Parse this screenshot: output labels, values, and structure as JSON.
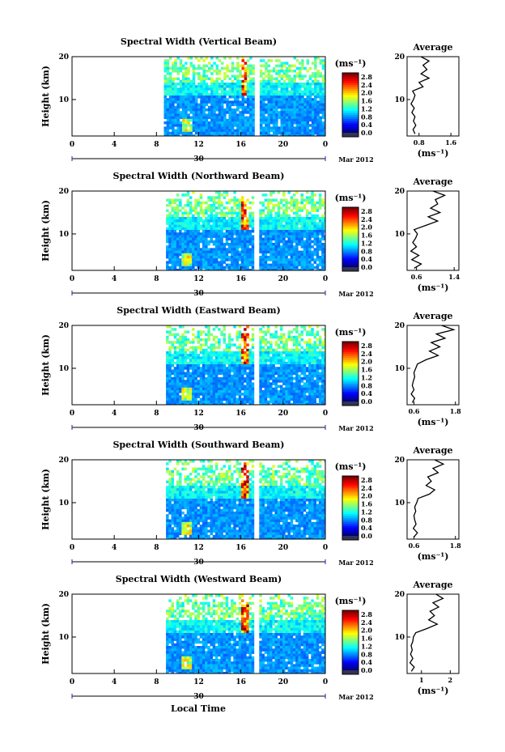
{
  "figure": {
    "xlabel": "Local Time",
    "date_label": "Mar 2012",
    "day_label": "30",
    "colorbar_unit": "(ms⁻¹)",
    "avg_title": "Average",
    "avg_unit": "(ms⁻¹)",
    "height_label": "Height (km)"
  },
  "chart_data": [
    {
      "type": "heatmap",
      "title": "Spectral Width (Vertical Beam)",
      "ylabel": "Height (km)",
      "xlabel": "Local Time",
      "x_ticks": [
        "0",
        "4",
        "8",
        "12",
        "16",
        "20",
        "0"
      ],
      "xlim": [
        0,
        24
      ],
      "y_ticks": [
        "10",
        "20"
      ],
      "ylim": [
        1.5,
        20
      ],
      "colorbar_ticks": [
        "0.0",
        "0.4",
        "0.8",
        "1.2",
        "1.6",
        "2.0",
        "2.4",
        "2.8"
      ],
      "colorbar_range": [
        0,
        3.0
      ],
      "data_start_hour": 8.7,
      "gaps_hours": [
        [
          17.2,
          17.6
        ]
      ],
      "average_profile": {
        "title": "Average",
        "xlabel": "(ms⁻¹)",
        "x_ticks": [
          "0.8",
          "1.6"
        ],
        "xlim": [
          0.5,
          1.8
        ],
        "y_ticks": [
          "10",
          "20"
        ],
        "profile": [
          [
            0.7,
            2
          ],
          [
            0.65,
            3
          ],
          [
            0.72,
            4
          ],
          [
            0.66,
            5
          ],
          [
            0.7,
            6
          ],
          [
            0.62,
            7
          ],
          [
            0.68,
            8
          ],
          [
            0.6,
            9
          ],
          [
            0.66,
            10
          ],
          [
            0.7,
            11
          ],
          [
            0.64,
            12
          ],
          [
            0.9,
            13
          ],
          [
            0.8,
            14
          ],
          [
            1.05,
            15
          ],
          [
            0.85,
            16
          ],
          [
            1.0,
            17
          ],
          [
            0.9,
            18
          ],
          [
            1.05,
            19
          ],
          [
            0.85,
            20
          ]
        ]
      }
    },
    {
      "type": "heatmap",
      "title": "Spectral Width (Northward Beam)",
      "ylabel": "Height (km)",
      "xlabel": "Local Time",
      "x_ticks": [
        "0",
        "4",
        "8",
        "12",
        "16",
        "20",
        "0"
      ],
      "xlim": [
        0,
        24
      ],
      "y_ticks": [
        "10",
        "20"
      ],
      "ylim": [
        1.5,
        20
      ],
      "colorbar_ticks": [
        "0.0",
        "0.4",
        "0.8",
        "1.2",
        "1.6",
        "2.0",
        "2.4",
        "2.8"
      ],
      "colorbar_range": [
        0,
        3.0
      ],
      "data_start_hour": 8.9,
      "gaps_hours": [
        [
          17.2,
          17.6
        ]
      ],
      "average_profile": {
        "title": "Average",
        "xlabel": "(ms⁻¹)",
        "x_ticks": [
          "0.6",
          "1.4"
        ],
        "xlim": [
          0.4,
          1.5
        ],
        "y_ticks": [
          "10",
          "20"
        ],
        "profile": [
          [
            0.55,
            2
          ],
          [
            0.7,
            3
          ],
          [
            0.5,
            4
          ],
          [
            0.65,
            5
          ],
          [
            0.48,
            6
          ],
          [
            0.6,
            7
          ],
          [
            0.52,
            8
          ],
          [
            0.58,
            9
          ],
          [
            0.62,
            10
          ],
          [
            0.55,
            11
          ],
          [
            0.8,
            12
          ],
          [
            1.05,
            13
          ],
          [
            0.85,
            14
          ],
          [
            1.1,
            15
          ],
          [
            0.9,
            16
          ],
          [
            1.05,
            17
          ],
          [
            1.0,
            18
          ],
          [
            1.2,
            19
          ],
          [
            0.95,
            20
          ]
        ]
      }
    },
    {
      "type": "heatmap",
      "title": "Spectral Width (Eastward Beam)",
      "ylabel": "Height (km)",
      "xlabel": "Local Time",
      "x_ticks": [
        "0",
        "4",
        "8",
        "12",
        "16",
        "20",
        "0"
      ],
      "xlim": [
        0,
        24
      ],
      "y_ticks": [
        "10",
        "20"
      ],
      "ylim": [
        1.5,
        20
      ],
      "colorbar_ticks": [
        "0.0",
        "0.4",
        "0.8",
        "1.2",
        "1.6",
        "2.0",
        "2.4",
        "2.8"
      ],
      "colorbar_range": [
        0,
        3.0
      ],
      "data_start_hour": 8.9,
      "gaps_hours": [
        [
          17.2,
          17.6
        ]
      ],
      "average_profile": {
        "title": "Average",
        "xlabel": "(ms⁻¹)",
        "x_ticks": [
          "0.6",
          "1.8"
        ],
        "xlim": [
          0.4,
          1.9
        ],
        "y_ticks": [
          "10",
          "20"
        ],
        "profile": [
          [
            0.55,
            2
          ],
          [
            0.62,
            3
          ],
          [
            0.52,
            4
          ],
          [
            0.6,
            5
          ],
          [
            0.55,
            6
          ],
          [
            0.58,
            7
          ],
          [
            0.62,
            8
          ],
          [
            0.6,
            9
          ],
          [
            0.65,
            10
          ],
          [
            0.7,
            11
          ],
          [
            0.95,
            12
          ],
          [
            1.3,
            13
          ],
          [
            1.05,
            14
          ],
          [
            1.35,
            15
          ],
          [
            1.1,
            16
          ],
          [
            1.5,
            17
          ],
          [
            1.25,
            18
          ],
          [
            1.75,
            19
          ],
          [
            1.4,
            20
          ]
        ]
      }
    },
    {
      "type": "heatmap",
      "title": "Spectral Width (Southward Beam)",
      "ylabel": "Height (km)",
      "xlabel": "Local Time",
      "x_ticks": [
        "0",
        "4",
        "8",
        "12",
        "16",
        "20",
        "0"
      ],
      "xlim": [
        0,
        24
      ],
      "y_ticks": [
        "10",
        "20"
      ],
      "ylim": [
        1.5,
        20
      ],
      "colorbar_ticks": [
        "0.0",
        "0.4",
        "0.8",
        "1.2",
        "1.6",
        "2.0",
        "2.4",
        "2.8"
      ],
      "colorbar_range": [
        0,
        3.0
      ],
      "data_start_hour": 8.9,
      "gaps_hours": [
        [
          17.2,
          17.6
        ]
      ],
      "average_profile": {
        "title": "Average",
        "xlabel": "(ms⁻¹)",
        "x_ticks": [
          "0.6",
          "1.8"
        ],
        "xlim": [
          0.4,
          1.9
        ],
        "y_ticks": [
          "10",
          "20"
        ],
        "profile": [
          [
            0.6,
            2
          ],
          [
            0.7,
            3
          ],
          [
            0.58,
            4
          ],
          [
            0.66,
            5
          ],
          [
            0.62,
            6
          ],
          [
            0.6,
            7
          ],
          [
            0.65,
            8
          ],
          [
            0.62,
            9
          ],
          [
            0.68,
            10
          ],
          [
            0.72,
            11
          ],
          [
            1.05,
            12
          ],
          [
            1.2,
            13
          ],
          [
            0.95,
            14
          ],
          [
            1.1,
            15
          ],
          [
            1.0,
            16
          ],
          [
            1.3,
            17
          ],
          [
            1.15,
            18
          ],
          [
            1.45,
            19
          ],
          [
            1.2,
            20
          ]
        ]
      }
    },
    {
      "type": "heatmap",
      "title": "Spectral Width (Westward Beam)",
      "ylabel": "Height (km)",
      "xlabel": "Local Time",
      "x_ticks": [
        "0",
        "4",
        "8",
        "12",
        "16",
        "20",
        "0"
      ],
      "xlim": [
        0,
        24
      ],
      "y_ticks": [
        "10",
        "20"
      ],
      "ylim": [
        1.5,
        20
      ],
      "colorbar_ticks": [
        "0.0",
        "0.4",
        "0.8",
        "1.2",
        "1.6",
        "2.0",
        "2.4",
        "2.8"
      ],
      "colorbar_range": [
        0,
        3.0
      ],
      "data_start_hour": 8.9,
      "gaps_hours": [
        [
          17.2,
          17.6
        ]
      ],
      "average_profile": {
        "title": "Average",
        "xlabel": "(ms⁻¹)",
        "x_ticks": [
          "1",
          "2"
        ],
        "xlim": [
          0.5,
          2.3
        ],
        "y_ticks": [
          "10",
          "20"
        ],
        "profile": [
          [
            0.65,
            2
          ],
          [
            0.75,
            3
          ],
          [
            0.6,
            4
          ],
          [
            0.7,
            5
          ],
          [
            0.62,
            6
          ],
          [
            0.68,
            7
          ],
          [
            0.64,
            8
          ],
          [
            0.7,
            9
          ],
          [
            0.72,
            10
          ],
          [
            0.8,
            11
          ],
          [
            1.2,
            12
          ],
          [
            1.55,
            13
          ],
          [
            1.25,
            14
          ],
          [
            1.45,
            15
          ],
          [
            1.3,
            16
          ],
          [
            1.6,
            17
          ],
          [
            1.4,
            18
          ],
          [
            1.75,
            19
          ],
          [
            1.5,
            20
          ]
        ]
      }
    }
  ]
}
